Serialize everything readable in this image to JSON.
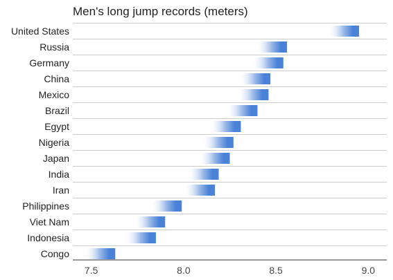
{
  "chart_data": {
    "type": "bar",
    "title": "Men's long jump records (meters)",
    "xlabel": "",
    "ylabel": "",
    "xlim": [
      7.4,
      9.1
    ],
    "ticks": [
      7.5,
      8.0,
      8.5,
      9.0
    ],
    "tick_labels": [
      "7.5",
      "8.0",
      "8.5",
      "9.0"
    ],
    "grid": true,
    "categories": [
      "United States",
      "Russia",
      "Germany",
      "China",
      "Mexico",
      "Brazil",
      "Egypt",
      "Nigeria",
      "Japan",
      "India",
      "Iran",
      "Philippines",
      "Viet Nam",
      "Indonesia",
      "Congo"
    ],
    "values": [
      8.95,
      8.56,
      8.54,
      8.47,
      8.46,
      8.4,
      8.31,
      8.27,
      8.25,
      8.19,
      8.17,
      7.99,
      7.9,
      7.85,
      7.63
    ],
    "colors": {
      "bar": "#4a82d8",
      "bar_fade": "#ffffff",
      "grid": "#cccccc",
      "axis": "#333333",
      "text": "#222222",
      "tick_text": "#444444"
    }
  }
}
